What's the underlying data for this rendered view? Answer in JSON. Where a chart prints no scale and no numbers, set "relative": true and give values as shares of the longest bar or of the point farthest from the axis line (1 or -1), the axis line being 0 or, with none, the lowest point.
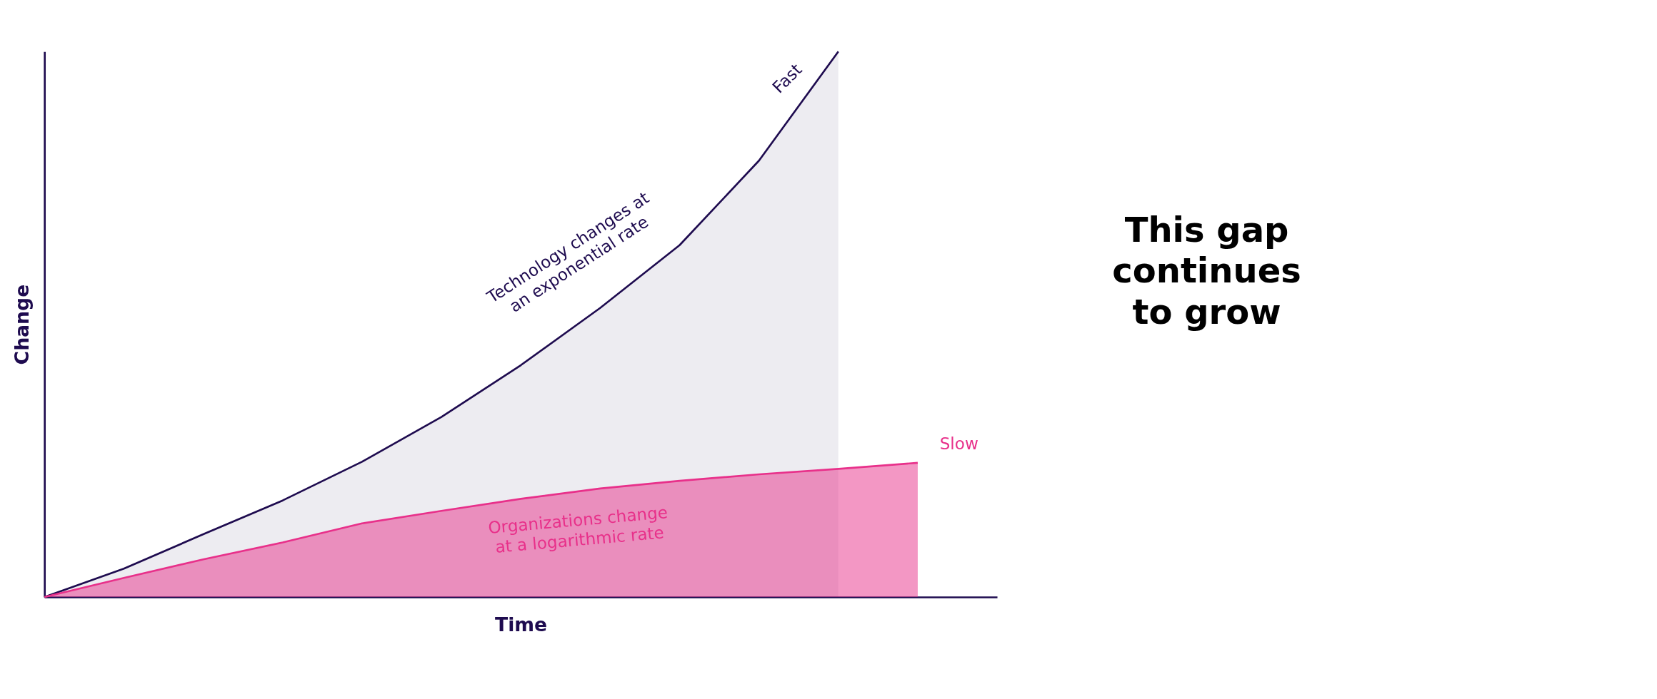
{
  "chart_data": {
    "type": "area",
    "relative": true,
    "xlabel": "Time",
    "ylabel": "Change",
    "tick_labels": false,
    "categories": [
      null,
      null,
      null,
      null,
      null,
      null,
      null,
      null,
      null,
      null,
      null,
      null,
      null
    ],
    "series": [
      {
        "color": "#1e0b4f",
        "values": [
          0,
          0.052,
          0.115,
          0.177,
          0.248,
          0.33,
          0.425,
          0.53,
          0.645,
          0.8,
          1,
          null,
          null
        ]
      },
      {
        "color": "#e8308a",
        "values": [
          0,
          0.035,
          0.069,
          0.1,
          0.135,
          0.158,
          0.18,
          0.199,
          0.213,
          0.225,
          0.235,
          0.246,
          null
        ]
      }
    ],
    "annotations": [
      "Fast",
      "Technology changes at\nan exponential rate",
      "Slow",
      "Organizations change\nat a logarithmic rate",
      "This gap\ncontinues\nto grow"
    ]
  }
}
